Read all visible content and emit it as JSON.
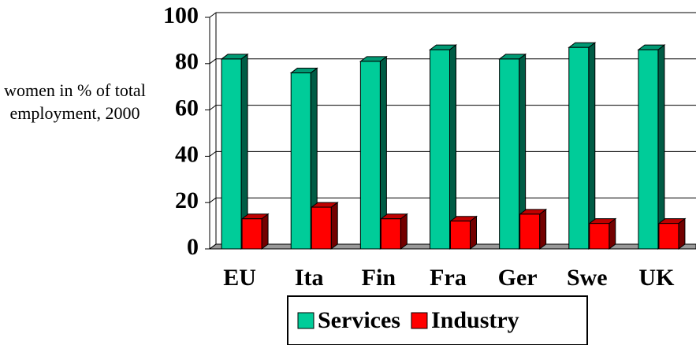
{
  "chart_data": {
    "type": "bar",
    "ylabel": "women in % of total employment, 2000",
    "categories": [
      "EU",
      "Ita",
      "Fin",
      "Fra",
      "Ger",
      "Swe",
      "UK"
    ],
    "series": [
      {
        "name": "Services",
        "color": "#00cc99",
        "values": [
          82,
          76,
          81,
          86,
          82,
          87,
          86
        ]
      },
      {
        "name": "Industry",
        "color": "#ff0000",
        "values": [
          13,
          18,
          13,
          12,
          15,
          11,
          11
        ]
      }
    ],
    "ylim": [
      0,
      100
    ],
    "yticks": [
      0,
      20,
      40,
      60,
      80,
      100
    ],
    "grid": true
  }
}
